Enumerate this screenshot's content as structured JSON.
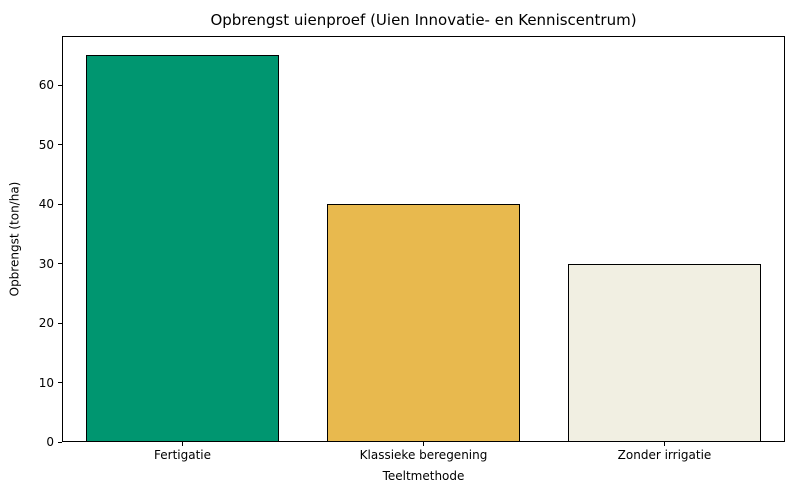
{
  "figure": {
    "background_color": "#ffffff",
    "text_color": "#000000"
  },
  "chart_data": {
    "type": "bar",
    "title": "Opbrengst uienproef (Uien Innovatie- en Kenniscentrum)",
    "xlabel": "Teeltmethode",
    "ylabel": "Opbrengst (ton/ha)",
    "categories": [
      "Fertigatie",
      "Klassieke beregening",
      "Zonder irrigatie"
    ],
    "values": [
      65,
      40,
      30
    ],
    "bar_colors": [
      "#009670",
      "#e8b94e",
      "#f1efe2"
    ],
    "bar_edge_color": "#000000",
    "bar_width_fraction": 0.8,
    "ylim": [
      0,
      68.25
    ],
    "yticks": [
      0,
      10,
      20,
      30,
      40,
      50,
      60
    ],
    "grid": false,
    "legend": null
  }
}
